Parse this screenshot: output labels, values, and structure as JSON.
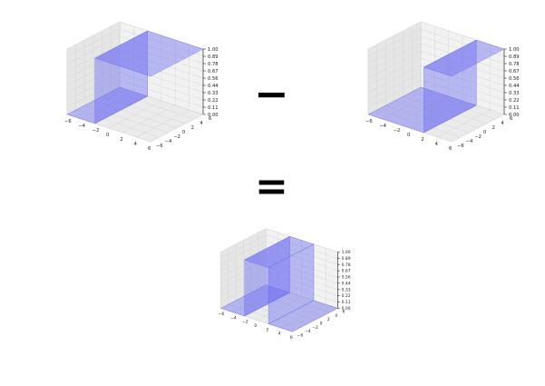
{
  "operators": {
    "minus": "−",
    "equals": "="
  },
  "colors": {
    "surface": "#6f6ff2",
    "pane": "#ebebeb",
    "grid": "#d6d6d6",
    "axis": "#333333"
  },
  "chart_data": [
    {
      "type": "surface3d",
      "name": "step",
      "z_ticks": [
        "1.00",
        "0.89",
        "0.78",
        "0.67",
        "0.56",
        "0.44",
        "0.33",
        "0.22",
        "0.11",
        "0.00"
      ],
      "x_ticks": [
        "−6",
        "−4",
        "−2",
        "0",
        "2",
        "4",
        "6"
      ],
      "y_ticks": [
        "−6",
        "−4",
        "−2",
        "0",
        "2",
        "4",
        "6"
      ],
      "xlim": [
        -6,
        6
      ],
      "ylim": [
        -6,
        6
      ],
      "zlim": [
        0,
        1
      ],
      "step_at_x": -2,
      "z_low": 0,
      "z_high": 1
    },
    {
      "type": "surface3d",
      "name": "step",
      "z_ticks": [
        "1.00",
        "0.89",
        "0.78",
        "0.67",
        "0.56",
        "0.44",
        "0.33",
        "0.22",
        "0.11",
        "0.00"
      ],
      "x_ticks": [
        "−6",
        "−4",
        "−2",
        "0",
        "2",
        "4",
        "6"
      ],
      "y_ticks": [
        "−6",
        "−4",
        "−2",
        "0",
        "2",
        "4",
        "6"
      ],
      "xlim": [
        -6,
        6
      ],
      "ylim": [
        -6,
        6
      ],
      "zlim": [
        0,
        1
      ],
      "step_at_x": 2,
      "z_low": 0,
      "z_high": 1
    },
    {
      "type": "surface3d",
      "name": "rect",
      "z_ticks": [
        "1.00",
        "0.89",
        "0.78",
        "0.67",
        "0.56",
        "0.44",
        "0.33",
        "0.22",
        "0.11",
        "0.00"
      ],
      "x_ticks": [
        "−6",
        "−4",
        "−2",
        "0",
        "2",
        "4",
        "6"
      ],
      "y_ticks": [
        "−6",
        "−4",
        "−2",
        "0",
        "2",
        "4",
        "6"
      ],
      "xlim": [
        -6,
        6
      ],
      "ylim": [
        -6,
        6
      ],
      "zlim": [
        0,
        1
      ],
      "rise_at_x": -2,
      "fall_at_x": 2,
      "z_low": 0,
      "z_high": 1
    }
  ]
}
